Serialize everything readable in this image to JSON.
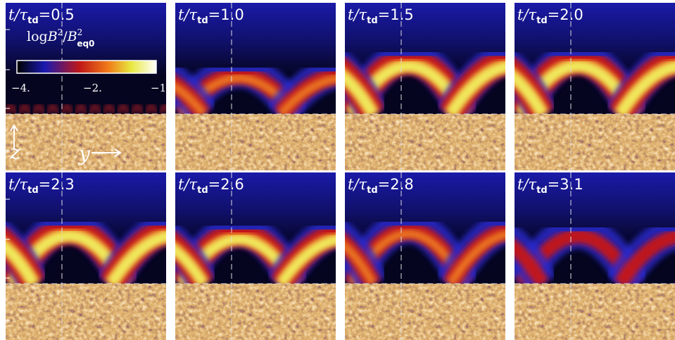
{
  "time_label": {
    "symbol": "t/τ",
    "subscript": "td",
    "equals": "="
  },
  "panels": [
    {
      "time": "0.5"
    },
    {
      "time": "1.0"
    },
    {
      "time": "1.5"
    },
    {
      "time": "2.0"
    },
    {
      "time": "2.3"
    },
    {
      "time": "2.6"
    },
    {
      "time": "2.8"
    },
    {
      "time": "3.1"
    }
  ],
  "colorbar": {
    "label": {
      "log": "log",
      "b1": "B",
      "sup1": "2",
      "slash": "/",
      "b2": "B",
      "sup2": "2",
      "sub2": "eq0"
    },
    "ticks": [
      "−4.",
      "−2.",
      "−1."
    ]
  },
  "axes": {
    "z": "z",
    "y": "y"
  }
}
